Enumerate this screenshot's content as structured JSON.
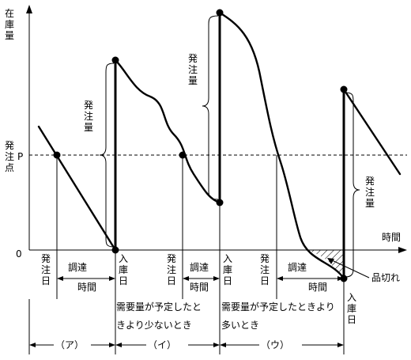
{
  "axes": {
    "y_label": [
      "在",
      "庫",
      "量"
    ],
    "x_label": "時間",
    "origin": "0",
    "reorder_point_label": [
      "発",
      "注",
      "点"
    ],
    "reorder_point_symbol": "P"
  },
  "vertical_labels": {
    "order_1": [
      "発",
      "注",
      "日"
    ],
    "order_2": [
      "発",
      "注",
      "日"
    ],
    "order_3": [
      "発",
      "注",
      "日"
    ],
    "receive_1": [
      "入",
      "庫",
      "日"
    ],
    "receive_2": [
      "入",
      "庫",
      "日"
    ],
    "receive_3": [
      "入",
      "庫",
      "日"
    ]
  },
  "order_qty_labels": {
    "q1": [
      "発",
      "注",
      "量"
    ],
    "q2": [
      "発",
      "注",
      "量"
    ],
    "q3": [
      "発",
      "注",
      "量"
    ]
  },
  "lead_time_labels": {
    "lt1": [
      "調達",
      "時間"
    ],
    "lt2": [
      "調達",
      "時間"
    ],
    "lt3": [
      "調達",
      "時間"
    ]
  },
  "stockout_label": "品切れ",
  "captions": {
    "less": [
      "需要量が予定したと",
      "きより少ないとき"
    ],
    "more": [
      "需要量が予定したときより",
      "多いとき"
    ]
  },
  "periods": {
    "a": "（ア）",
    "i": "（イ）",
    "u": "（ウ）"
  }
}
